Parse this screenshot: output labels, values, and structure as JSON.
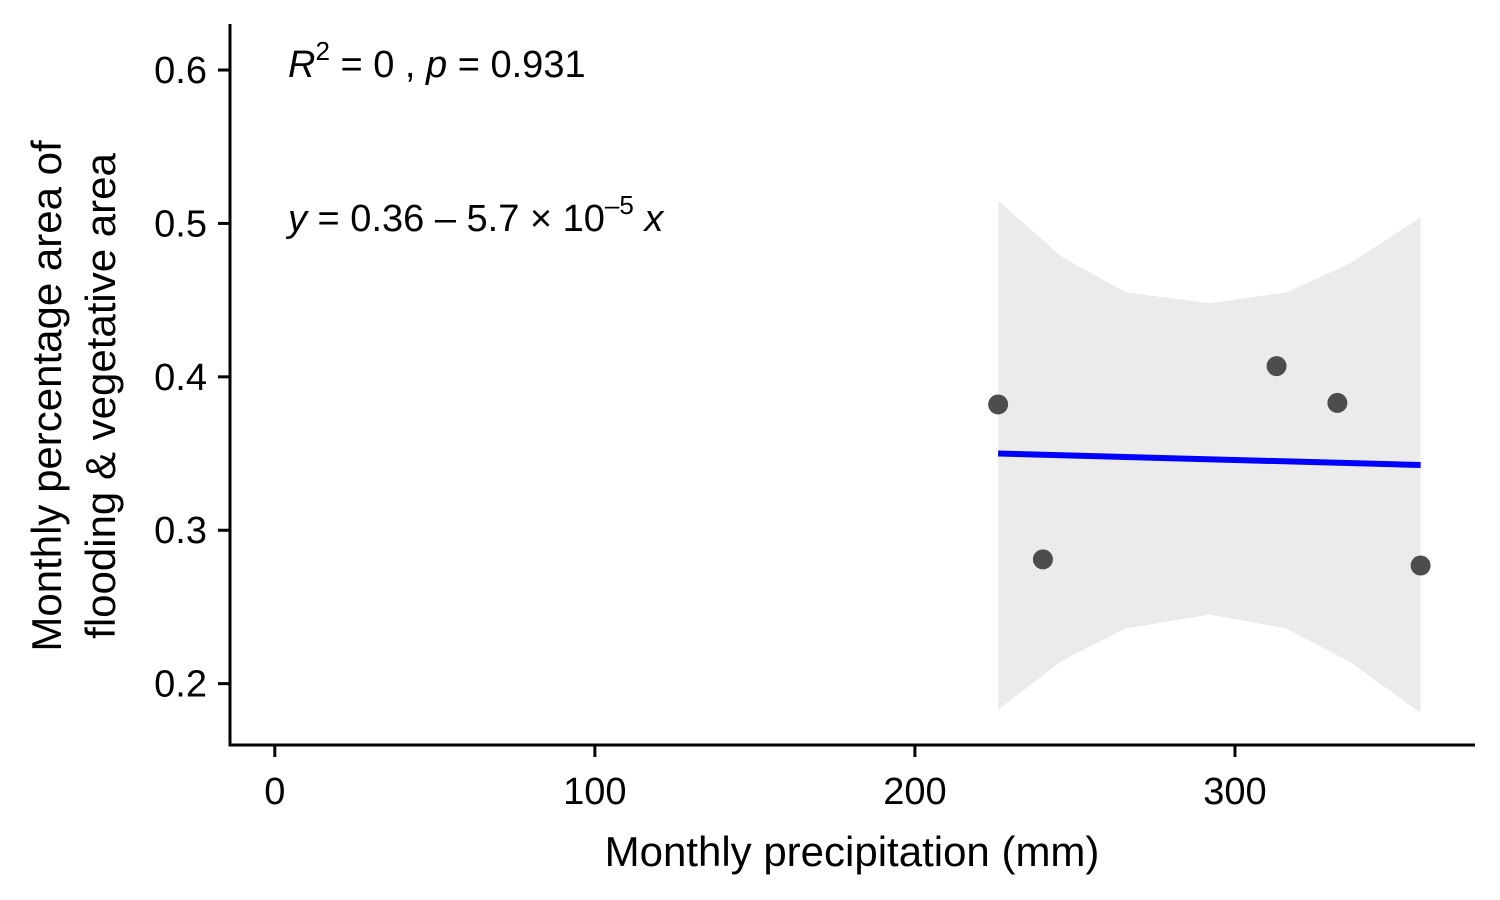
{
  "chart_data": {
    "type": "scatter",
    "title": "",
    "xlabel": "Monthly precipitation (mm)",
    "ylabel_lines": [
      "Monthly percentage area of",
      "flooding & vegetative area"
    ],
    "xlim": [
      -14,
      375
    ],
    "ylim": [
      0.16,
      0.63
    ],
    "xticks": [
      0,
      100,
      200,
      300
    ],
    "yticks": [
      0.2,
      0.3,
      0.4,
      0.5,
      0.6
    ],
    "xtick_labels": [
      "0",
      "100",
      "200",
      "300"
    ],
    "ytick_labels": [
      "0.2",
      "0.3",
      "0.4",
      "0.5",
      "0.6"
    ],
    "points": [
      {
        "x": 226,
        "y": 0.382
      },
      {
        "x": 240,
        "y": 0.281
      },
      {
        "x": 313,
        "y": 0.407
      },
      {
        "x": 332,
        "y": 0.383
      },
      {
        "x": 358,
        "y": 0.277
      }
    ],
    "fit": {
      "x_range": [
        226,
        358
      ],
      "intercept": 0.3629,
      "slope": -5.7e-05,
      "color": "#0000FF"
    },
    "confidence_band": {
      "color": "#EBEBEB",
      "x": [
        226,
        246,
        266,
        292,
        316,
        336,
        358
      ],
      "lower": [
        0.183,
        0.215,
        0.236,
        0.245,
        0.236,
        0.214,
        0.181
      ],
      "upper": [
        0.515,
        0.478,
        0.455,
        0.448,
        0.455,
        0.474,
        0.504
      ]
    },
    "point_color": "#4D4D4D",
    "grid": false,
    "legend": "none",
    "annotations": {
      "r2": {
        "var": "R",
        "sup": "2",
        "text": " = 0 , ",
        "p": "p",
        "ptext": " = 0.931"
      },
      "equation": {
        "y": "y",
        "eq": " = 0.36 – 5.7 × 10",
        "sup": "–5",
        "x": " x"
      }
    }
  }
}
